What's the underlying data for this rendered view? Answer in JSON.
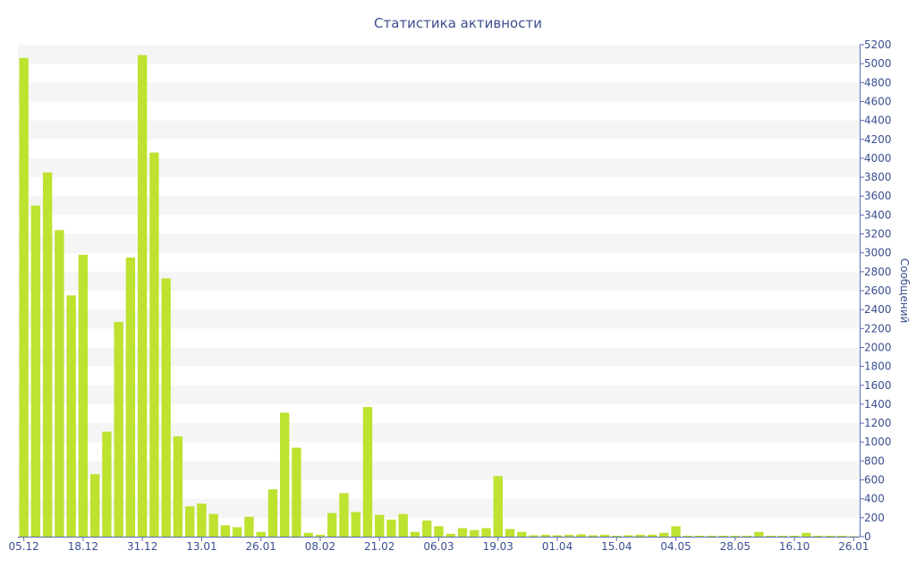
{
  "colors": {
    "bar": "#bde22f",
    "band": "#f5f5f5",
    "axis": "#5a6db0",
    "text": "#3b4f8f"
  },
  "chart_data": {
    "type": "bar",
    "title": "Статистика активности",
    "xlabel": "",
    "ylabel": "Сообщений",
    "y_axis_side": "right",
    "ylim": [
      0,
      5200
    ],
    "y_ticks": [
      0,
      200,
      400,
      600,
      800,
      1000,
      1200,
      1400,
      1600,
      1800,
      2000,
      2200,
      2400,
      2600,
      2800,
      3000,
      3200,
      3400,
      3600,
      3800,
      4000,
      4200,
      4400,
      4600,
      4800,
      5000,
      5200
    ],
    "x_tick_labels": [
      "05.12",
      "18.12",
      "31.12",
      "13.01",
      "26.01",
      "08.02",
      "21.02",
      "06.03",
      "19.03",
      "01.04",
      "15.04",
      "04.05",
      "28.05",
      "16.10",
      "26.01"
    ],
    "x_tick_bar_index": [
      0,
      5,
      10,
      15,
      20,
      25,
      30,
      35,
      40,
      45,
      50,
      55,
      60,
      65,
      70
    ],
    "grid": "alternating horizontal bands",
    "values": [
      5060,
      3500,
      3850,
      3240,
      2550,
      2980,
      660,
      1110,
      2270,
      2950,
      5090,
      4060,
      2730,
      1060,
      320,
      350,
      240,
      120,
      100,
      210,
      50,
      500,
      1310,
      940,
      40,
      20,
      250,
      460,
      260,
      1370,
      230,
      180,
      240,
      50,
      170,
      110,
      30,
      90,
      70,
      90,
      640,
      80,
      50,
      15,
      20,
      15,
      20,
      25,
      15,
      20,
      10,
      15,
      20,
      20,
      40,
      110,
      10,
      10,
      10,
      10,
      10,
      10,
      50,
      10,
      10,
      10,
      40,
      10,
      10,
      10,
      5
    ]
  }
}
